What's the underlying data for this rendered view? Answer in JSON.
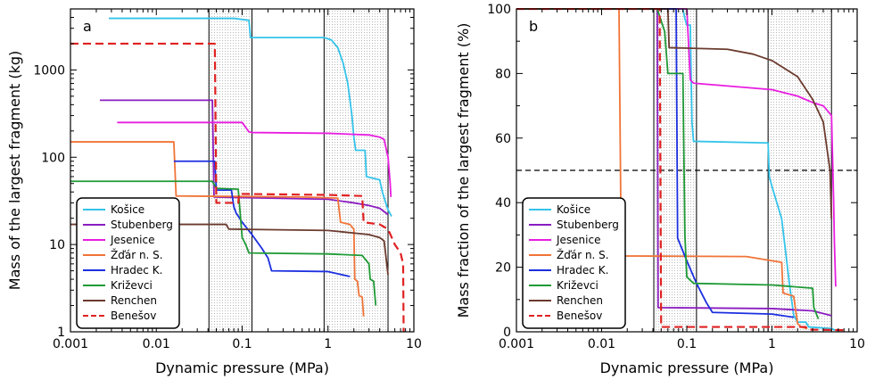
{
  "colors": {
    "Košice": "#33c3ea",
    "Stubenberg": "#8a1cc0",
    "Jesenice": "#e81de0",
    "Žďár n. S.": "#f07438",
    "Hradec K.": "#1b2fe0",
    "Križevci": "#1f9a36",
    "Renchen": "#6b3a2e",
    "Benešov": "#e02121"
  },
  "chart_data": [
    {
      "type": "line",
      "panel_label": "a",
      "xlabel": "Dynamic pressure (MPa)",
      "ylabel": "Mass of the largest fragment (kg)",
      "xscale": "log",
      "yscale": "log",
      "xlim": [
        0.001,
        10
      ],
      "ylim": [
        1,
        5000
      ],
      "x_ticks": [
        "0.001",
        "0.01",
        "0.1",
        "1",
        "10"
      ],
      "y_ticks": [
        "1",
        "10",
        "100",
        "1000"
      ],
      "vertical_lines": [
        0.041,
        0.13,
        0.9,
        5.0
      ],
      "shaded_ranges": [
        [
          0.041,
          0.13
        ],
        [
          0.9,
          5.0
        ]
      ],
      "legend_position": "lower-left",
      "series": [
        {
          "name": "Košice",
          "points": [
            [
              0.0028,
              3900
            ],
            [
              0.08,
              3900
            ],
            [
              0.12,
              3700
            ],
            [
              0.125,
              2350
            ],
            [
              0.9,
              2350
            ],
            [
              1.1,
              2200
            ],
            [
              1.3,
              1800
            ],
            [
              1.5,
              1200
            ],
            [
              1.7,
              700
            ],
            [
              1.9,
              300
            ],
            [
              2.0,
              170
            ],
            [
              2.1,
              120
            ],
            [
              2.7,
              120
            ],
            [
              2.8,
              60
            ],
            [
              4.0,
              55
            ],
            [
              4.3,
              40
            ],
            [
              4.7,
              30
            ],
            [
              5.0,
              25
            ],
            [
              5.5,
              21
            ]
          ]
        },
        {
          "name": "Stubenberg",
          "points": [
            [
              0.0022,
              450
            ],
            [
              0.045,
              450
            ],
            [
              0.047,
              35
            ],
            [
              1.0,
              33
            ],
            [
              2.0,
              30
            ],
            [
              3.0,
              28
            ],
            [
              4.0,
              26
            ],
            [
              5.0,
              22
            ]
          ]
        },
        {
          "name": "Jesenice",
          "points": [
            [
              0.0035,
              250
            ],
            [
              0.1,
              250
            ],
            [
              0.12,
              195
            ],
            [
              0.13,
              192
            ],
            [
              1.0,
              188
            ],
            [
              3.0,
              180
            ],
            [
              4.0,
              170
            ],
            [
              4.5,
              160
            ],
            [
              5.0,
              100
            ],
            [
              5.3,
              50
            ],
            [
              5.4,
              35
            ]
          ]
        },
        {
          "name": "Žďár n. S.",
          "points": [
            [
              0.001,
              150
            ],
            [
              0.016,
              150
            ],
            [
              0.017,
              36
            ],
            [
              0.5,
              35
            ],
            [
              1.3,
              34
            ],
            [
              1.4,
              18
            ],
            [
              1.8,
              17
            ],
            [
              2.0,
              15
            ],
            [
              2.05,
              4
            ],
            [
              2.2,
              3.8
            ],
            [
              2.3,
              2.6
            ],
            [
              2.5,
              2.5
            ],
            [
              2.6,
              1.5
            ]
          ]
        },
        {
          "name": "Hradec K.",
          "points": [
            [
              0.016,
              90
            ],
            [
              0.048,
              90
            ],
            [
              0.05,
              42
            ],
            [
              0.075,
              42
            ],
            [
              0.08,
              27
            ],
            [
              0.085,
              23
            ],
            [
              0.1,
              18
            ],
            [
              0.13,
              13
            ],
            [
              0.17,
              9
            ],
            [
              0.2,
              7
            ],
            [
              0.22,
              5
            ],
            [
              1.0,
              4.9
            ],
            [
              1.8,
              4.3
            ]
          ]
        },
        {
          "name": "Križevci",
          "points": [
            [
              0.001,
              53
            ],
            [
              0.045,
              53
            ],
            [
              0.05,
              44
            ],
            [
              0.09,
              43
            ],
            [
              0.1,
              12
            ],
            [
              0.11,
              10
            ],
            [
              0.12,
              8
            ],
            [
              1.0,
              7.8
            ],
            [
              2.5,
              7.5
            ],
            [
              3.0,
              6.0
            ],
            [
              3.1,
              4.0
            ],
            [
              3.4,
              3.8
            ],
            [
              3.6,
              2.0
            ]
          ]
        },
        {
          "name": "Renchen",
          "points": [
            [
              0.001,
              17
            ],
            [
              0.065,
              17
            ],
            [
              0.07,
              15
            ],
            [
              1.0,
              14.5
            ],
            [
              3.0,
              13
            ],
            [
              4.0,
              12
            ],
            [
              4.5,
              11
            ],
            [
              5.0,
              4.5
            ]
          ]
        },
        {
          "name": "Benešov",
          "dashed": true,
          "points": [
            [
              0.001,
              2000
            ],
            [
              0.048,
              2000
            ],
            [
              0.05,
              30
            ],
            [
              0.09,
              30
            ],
            [
              0.092,
              38
            ],
            [
              1.0,
              37
            ],
            [
              2.5,
              36
            ],
            [
              2.6,
              18
            ],
            [
              4.0,
              17
            ],
            [
              5.0,
              15
            ],
            [
              6.0,
              10
            ],
            [
              7.0,
              8
            ],
            [
              7.5,
              6
            ],
            [
              7.6,
              1
            ]
          ]
        }
      ]
    },
    {
      "type": "line",
      "panel_label": "b",
      "xlabel": "Dynamic pressure (MPa)",
      "ylabel": "Mass fraction of the largest fragment (%)",
      "xscale": "log",
      "yscale": "linear",
      "xlim": [
        0.001,
        10
      ],
      "ylim": [
        0,
        100
      ],
      "x_ticks": [
        "0.001",
        "0.01",
        "0.1",
        "1",
        "10"
      ],
      "y_ticks": [
        "0",
        "20",
        "40",
        "60",
        "80",
        "100"
      ],
      "vertical_lines": [
        0.041,
        0.13,
        0.9,
        5.0
      ],
      "shaded_ranges": [
        [
          0.041,
          0.13
        ],
        [
          0.9,
          5.0
        ]
      ],
      "horizontal_line": 50,
      "legend_position": "lower-left",
      "series": [
        {
          "name": "Košice",
          "points": [
            [
              0.002,
              100
            ],
            [
              0.09,
              100
            ],
            [
              0.095,
              97
            ],
            [
              0.1,
              95
            ],
            [
              0.11,
              95
            ],
            [
              0.115,
              65
            ],
            [
              0.12,
              59
            ],
            [
              0.9,
              58.5
            ],
            [
              0.93,
              48
            ],
            [
              1.0,
              45
            ],
            [
              1.3,
              35
            ],
            [
              1.6,
              15
            ],
            [
              1.8,
              5
            ],
            [
              2.0,
              3
            ],
            [
              2.5,
              3
            ],
            [
              2.7,
              1.5
            ],
            [
              5.0,
              1
            ],
            [
              5.5,
              0.5
            ]
          ]
        },
        {
          "name": "Stubenberg",
          "points": [
            [
              0.002,
              100
            ],
            [
              0.045,
              100
            ],
            [
              0.046,
              7.5
            ],
            [
              1.0,
              7.2
            ],
            [
              3.0,
              6.5
            ],
            [
              5.0,
              5.0
            ]
          ]
        },
        {
          "name": "Jesenice",
          "points": [
            [
              0.004,
              100
            ],
            [
              0.1,
              100
            ],
            [
              0.11,
              78
            ],
            [
              0.12,
              77
            ],
            [
              1.0,
              75
            ],
            [
              2.0,
              73
            ],
            [
              3.0,
              71
            ],
            [
              4.0,
              70
            ],
            [
              5.0,
              67
            ],
            [
              5.3,
              40
            ],
            [
              5.4,
              28
            ],
            [
              5.6,
              14
            ]
          ]
        },
        {
          "name": "Žďár n. S.",
          "points": [
            [
              0.001,
              100
            ],
            [
              0.016,
              100
            ],
            [
              0.017,
              23.5
            ],
            [
              0.5,
              23.3
            ],
            [
              1.3,
              21.5
            ],
            [
              1.35,
              12
            ],
            [
              1.8,
              11
            ],
            [
              2.0,
              2.5
            ],
            [
              2.2,
              1.5
            ],
            [
              2.6,
              1.0
            ]
          ]
        },
        {
          "name": "Hradec K.",
          "points": [
            [
              0.02,
              100
            ],
            [
              0.075,
              100
            ],
            [
              0.078,
              29
            ],
            [
              0.1,
              22
            ],
            [
              0.13,
              15
            ],
            [
              0.17,
              9
            ],
            [
              0.2,
              6
            ],
            [
              1.0,
              5.5
            ],
            [
              1.8,
              4.5
            ]
          ]
        },
        {
          "name": "Križevci",
          "points": [
            [
              0.001,
              100
            ],
            [
              0.045,
              100
            ],
            [
              0.055,
              93
            ],
            [
              0.06,
              80
            ],
            [
              0.09,
              80
            ],
            [
              0.095,
              30
            ],
            [
              0.1,
              17
            ],
            [
              0.12,
              15
            ],
            [
              1.0,
              14.5
            ],
            [
              3.0,
              13.5
            ],
            [
              3.1,
              7.5
            ],
            [
              3.5,
              4
            ]
          ]
        },
        {
          "name": "Renchen",
          "points": [
            [
              0.001,
              100
            ],
            [
              0.06,
              100
            ],
            [
              0.062,
              88
            ],
            [
              0.3,
              87.5
            ],
            [
              0.6,
              86
            ],
            [
              1.0,
              84
            ],
            [
              2.0,
              79
            ],
            [
              3.0,
              72
            ],
            [
              4.0,
              65
            ],
            [
              4.8,
              50
            ],
            [
              5.0,
              35
            ]
          ]
        },
        {
          "name": "Benešov",
          "dashed": true,
          "points": [
            [
              0.001,
              100
            ],
            [
              0.048,
              100
            ],
            [
              0.05,
              1.5
            ],
            [
              1.0,
              1.5
            ],
            [
              2.5,
              1.5
            ],
            [
              2.6,
              0.7
            ],
            [
              7.6,
              0.5
            ]
          ]
        }
      ]
    }
  ]
}
